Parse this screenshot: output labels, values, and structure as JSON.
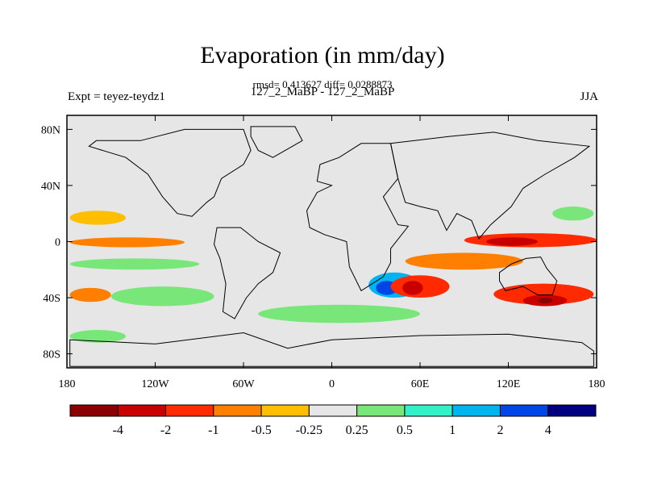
{
  "chart_data": {
    "type": "heatmap",
    "title": "Evaporation (in mm/day)",
    "subtitle": "rmsd= 0.413627 diff= 0.0288873",
    "experiment_label": "Expt = teyez-teydz1",
    "comparison_label": "127_2_MaBP - 127_2_MaBP",
    "season": "JJA",
    "x_ticks": [
      "180",
      "120W",
      "60W",
      "0",
      "60E",
      "120E",
      "180"
    ],
    "x_tick_values": [
      -180,
      -120,
      -60,
      0,
      60,
      120,
      180
    ],
    "y_ticks": [
      "80N",
      "40N",
      "0",
      "40S",
      "80S"
    ],
    "y_tick_values": [
      80,
      40,
      0,
      -40,
      -80
    ],
    "xlim": [
      -180,
      180
    ],
    "ylim": [
      -90,
      90
    ],
    "colorbar": {
      "labels": [
        "-4",
        "-2",
        "-1",
        "-0.5",
        "-0.25",
        "0.25",
        "0.5",
        "1",
        "2",
        "4"
      ],
      "levels": [
        -4,
        -2,
        -1,
        -0.5,
        -0.25,
        0.25,
        0.5,
        1,
        2,
        4
      ],
      "colors": [
        "#8b0000",
        "#c80000",
        "#ff2a00",
        "#ff7f00",
        "#ffbf00",
        "#e6e6e6",
        "#78e678",
        "#32f0c8",
        "#00b4f0",
        "#0046e6",
        "#000080"
      ]
    },
    "background_color": "#e6e6e6",
    "features": [
      {
        "name": "equatorial-neg-band",
        "lon": [
          -178,
          -115
        ],
        "lat": [
          1,
          -2
        ],
        "level": "-2"
      },
      {
        "name": "equatorial-neg-outer",
        "lon": [
          -178,
          -100
        ],
        "lat": [
          3,
          -4
        ],
        "level": "-0.5"
      },
      {
        "name": "pacific-west-neg",
        "lon": [
          -178,
          -140
        ],
        "lat": [
          22,
          12
        ],
        "level": "-0.25"
      },
      {
        "name": "pacific-south-pos",
        "lon": [
          -178,
          -90
        ],
        "lat": [
          -12,
          -20
        ],
        "level": "0.25"
      },
      {
        "name": "pacific-40s-neg",
        "lon": [
          -178,
          -150
        ],
        "lat": [
          -33,
          -43
        ],
        "level": "-0.5"
      },
      {
        "name": "pacific-40s-pos",
        "lon": [
          -150,
          -80
        ],
        "lat": [
          -32,
          -46
        ],
        "level": "0.25"
      },
      {
        "name": "south-ocean-pos",
        "lon": [
          -178,
          -140
        ],
        "lat": [
          -63,
          -72
        ],
        "level": "0.25"
      },
      {
        "name": "indian-eq-neg",
        "lon": [
          90,
          180
        ],
        "lat": [
          6,
          -4
        ],
        "level": "-1"
      },
      {
        "name": "indian-eq-strong",
        "lon": [
          105,
          140
        ],
        "lat": [
          3,
          -3
        ],
        "level": "-2"
      },
      {
        "name": "indian-10s-neg",
        "lon": [
          50,
          130
        ],
        "lat": [
          -8,
          -20
        ],
        "level": "-0.5"
      },
      {
        "name": "south-indian-neg",
        "lon": [
          110,
          178
        ],
        "lat": [
          -30,
          -45
        ],
        "level": "-1"
      },
      {
        "name": "south-indian-strong",
        "lon": [
          130,
          160
        ],
        "lat": [
          -38,
          -46
        ],
        "level": "-2"
      },
      {
        "name": "south-indian-core",
        "lon": [
          140,
          150
        ],
        "lat": [
          -40,
          -44
        ],
        "level": "-4"
      },
      {
        "name": "africa-sw-pos",
        "lon": [
          25,
          60
        ],
        "lat": [
          -22,
          -40
        ],
        "level": "1"
      },
      {
        "name": "africa-sw-strong",
        "lon": [
          30,
          45
        ],
        "lat": [
          -28,
          -38
        ],
        "level": "2"
      },
      {
        "name": "madagascar-neg",
        "lon": [
          40,
          80
        ],
        "lat": [
          -24,
          -40
        ],
        "level": "-1"
      },
      {
        "name": "madagascar-strong",
        "lon": [
          48,
          62
        ],
        "lat": [
          -28,
          -38
        ],
        "level": "-2"
      },
      {
        "name": "south-atlantic-pos",
        "lon": [
          -50,
          60
        ],
        "lat": [
          -45,
          -58
        ],
        "level": "0.25"
      },
      {
        "name": "north-pacific-pos",
        "lon": [
          150,
          178
        ],
        "lat": [
          25,
          15
        ],
        "level": "0.25"
      }
    ]
  }
}
